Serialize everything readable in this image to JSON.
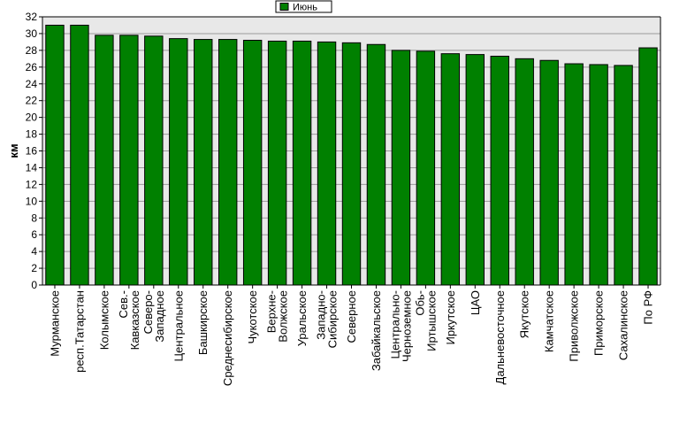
{
  "chart_data": {
    "type": "bar",
    "title": "",
    "xlabel": "",
    "ylabel": "км",
    "ylim": [
      0,
      32
    ],
    "ytick_step": 2,
    "grid": true,
    "legend_position": "top-center",
    "categories": [
      "Мурманское",
      "респ.Татарстан",
      "Колымское",
      "Сев.-Кавказское",
      "Северо-Западное",
      "Центральное",
      "Башкирское",
      "Среднесибирское",
      "Чукотское",
      "Верхне-Волжское",
      "Уральское",
      "Западно-Сибирское",
      "Северное",
      "Забайкальское",
      "Центрально-Черноземное",
      "Обь-Иртышское",
      "Иркутское",
      "ЦАО",
      "Дальневосточное",
      "Якутское",
      "Камчатское",
      "Приволжское",
      "Приморское",
      "Сахалинское",
      "По РФ"
    ],
    "label_lines": [
      [
        "Мурманское"
      ],
      [
        "респ.Татарстан"
      ],
      [
        "Колымское"
      ],
      [
        "Сев.-",
        "Кавказское"
      ],
      [
        "Северо-",
        "Западное"
      ],
      [
        "Центральное"
      ],
      [
        "Башкирское"
      ],
      [
        "Среднесибирское"
      ],
      [
        "Чукотское"
      ],
      [
        "Верхне-",
        "Волжское"
      ],
      [
        "Уральское"
      ],
      [
        "Западно-",
        "Сибирское"
      ],
      [
        "Северное"
      ],
      [
        "Забайкальское"
      ],
      [
        "Центрально-",
        "Черноземное"
      ],
      [
        "Обь-",
        "Иртышское"
      ],
      [
        "Иркутское"
      ],
      [
        "ЦАО"
      ],
      [
        "Дальневосточное"
      ],
      [
        "Якутское"
      ],
      [
        "Камчатское"
      ],
      [
        "Приволжское"
      ],
      [
        "Приморское"
      ],
      [
        "Сахалинское"
      ],
      [
        "По РФ"
      ]
    ],
    "series": [
      {
        "name": "Июнь",
        "color": "#008000",
        "values": [
          31.0,
          31.0,
          29.8,
          29.8,
          29.7,
          29.4,
          29.3,
          29.3,
          29.2,
          29.1,
          29.1,
          29.0,
          28.9,
          28.7,
          28.0,
          27.9,
          27.6,
          27.5,
          27.3,
          27.0,
          26.8,
          26.4,
          26.3,
          26.2,
          28.3
        ]
      }
    ],
    "colors": {
      "plot_background": "#e8e8e8",
      "gridline": "#9a9a9a",
      "bar_edge": "#000000"
    }
  }
}
